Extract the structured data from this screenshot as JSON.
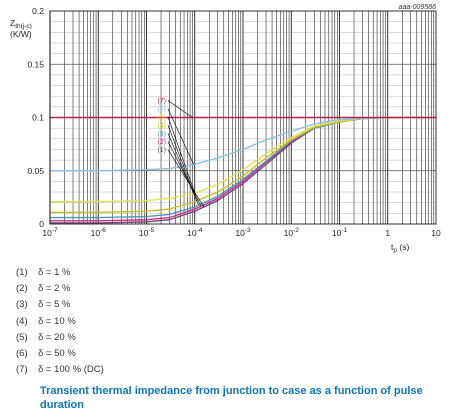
{
  "chart_data": {
    "type": "line",
    "x_scale": "log",
    "xlim": [
      1e-07,
      10
    ],
    "ylim": [
      0,
      0.2
    ],
    "y_ticks": [
      "0",
      "0.05",
      "0.1",
      "0.15",
      "0.2"
    ],
    "x_ticks": [
      {
        "base": "10",
        "exp": "-7"
      },
      {
        "base": "10",
        "exp": "-6"
      },
      {
        "base": "10",
        "exp": "-5"
      },
      {
        "base": "10",
        "exp": "-4"
      },
      {
        "base": "10",
        "exp": "-3"
      },
      {
        "base": "10",
        "exp": "-2"
      },
      {
        "base": "10",
        "exp": "-1"
      },
      {
        "base": "1",
        "exp": ""
      },
      {
        "base": "10",
        "exp": ""
      }
    ],
    "ylabel": {
      "main": "Z",
      "sub": "th(j-c)",
      "unit": "(K/W)"
    },
    "xlabel": {
      "main": "t",
      "sub": "p",
      "unit": " (s)"
    },
    "figure_id": "aaa-009586",
    "grid": true,
    "series": [
      {
        "name": "(1)",
        "color": "#6a4a78",
        "x": [
          1e-07,
          1e-06,
          1e-05,
          3e-05,
          0.0001,
          0.0003,
          0.001,
          0.003,
          0.01,
          0.03,
          0.1,
          0.3,
          1,
          10
        ],
        "y": [
          0.001,
          0.001,
          0.002,
          0.004,
          0.012,
          0.022,
          0.038,
          0.056,
          0.076,
          0.09,
          0.096,
          0.099,
          0.1,
          0.1
        ]
      },
      {
        "name": "(2)",
        "color": "#d0288a",
        "x": [
          1e-07,
          1e-06,
          1e-05,
          3e-05,
          0.0001,
          0.0003,
          0.001,
          0.003,
          0.01,
          0.03,
          0.1,
          0.3,
          1,
          10
        ],
        "y": [
          0.003,
          0.003,
          0.004,
          0.006,
          0.014,
          0.024,
          0.04,
          0.058,
          0.077,
          0.09,
          0.096,
          0.099,
          0.1,
          0.1
        ]
      },
      {
        "name": "(3)",
        "color": "#4a9ab4",
        "x": [
          1e-07,
          1e-06,
          1e-05,
          3e-05,
          0.0001,
          0.0003,
          0.001,
          0.003,
          0.01,
          0.03,
          0.1,
          0.3,
          1,
          10
        ],
        "y": [
          0.006,
          0.006,
          0.007,
          0.009,
          0.016,
          0.026,
          0.042,
          0.059,
          0.078,
          0.09,
          0.096,
          0.099,
          0.1,
          0.1
        ]
      },
      {
        "name": "(4)",
        "color": "#c8c020",
        "x": [
          1e-07,
          1e-06,
          1e-05,
          3e-05,
          0.0001,
          0.0003,
          0.001,
          0.003,
          0.01,
          0.03,
          0.1,
          0.3,
          1,
          10
        ],
        "y": [
          0.011,
          0.011,
          0.012,
          0.014,
          0.021,
          0.03,
          0.045,
          0.062,
          0.079,
          0.091,
          0.096,
          0.099,
          0.1,
          0.1
        ]
      },
      {
        "name": "(5)",
        "color": "#e8e058",
        "x": [
          1e-07,
          1e-06,
          1e-05,
          3e-05,
          0.0001,
          0.0003,
          0.001,
          0.003,
          0.01,
          0.03,
          0.1,
          0.3,
          1,
          10
        ],
        "y": [
          0.021,
          0.021,
          0.022,
          0.024,
          0.029,
          0.037,
          0.051,
          0.066,
          0.081,
          0.092,
          0.097,
          0.099,
          0.1,
          0.1
        ]
      },
      {
        "name": "(6)",
        "color": "#8cc2e0",
        "x": [
          1e-07,
          1e-06,
          1e-05,
          3e-05,
          0.0001,
          0.0003,
          0.001,
          0.003,
          0.01,
          0.03,
          0.1,
          0.3,
          1,
          10
        ],
        "y": [
          0.05,
          0.05,
          0.051,
          0.052,
          0.056,
          0.062,
          0.07,
          0.079,
          0.087,
          0.094,
          0.098,
          0.099,
          0.1,
          0.1
        ]
      },
      {
        "name": "(7)",
        "color": "#b8204a",
        "x": [
          1e-07,
          10
        ],
        "y": [
          0.1,
          0.1
        ]
      }
    ]
  },
  "legend": [
    {
      "num": "(1)",
      "text": "δ = 1 %"
    },
    {
      "num": "(2)",
      "text": "δ = 2 %"
    },
    {
      "num": "(3)",
      "text": "δ = 5 %"
    },
    {
      "num": "(4)",
      "text": "δ = 10 %"
    },
    {
      "num": "(5)",
      "text": "δ = 20 %"
    },
    {
      "num": "(6)",
      "text": "δ = 50 %"
    },
    {
      "num": "(7)",
      "text": "δ = 100 % (DC)"
    }
  ],
  "caption": "Transient thermal impedance from junction to case as a function of pulse duration"
}
